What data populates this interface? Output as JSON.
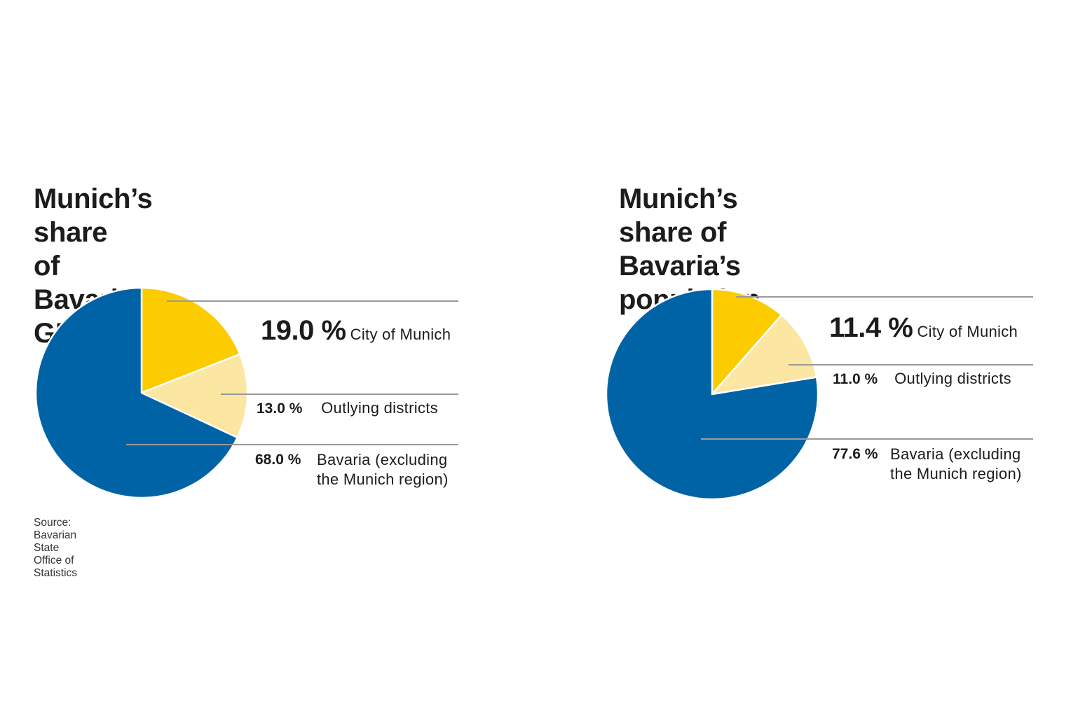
{
  "colors": {
    "city": "#fccb00",
    "outlying": "#fbe6a2",
    "bavaria": "#0063a6",
    "leader_line": "#9a9a9a"
  },
  "left": {
    "title_line1": "Munich’s share",
    "title_line2": "of Bavaria’s GDP",
    "city_pct": "19.0 %",
    "city_label": "City of Munich",
    "outlying_pct": "13.0 %",
    "outlying_label": "Outlying districts",
    "bavaria_pct": "68.0 %",
    "bavaria_label_line1": "Bavaria (excluding",
    "bavaria_label_line2": "the Munich region)",
    "source": "Source: Bavarian State Office of Statistics"
  },
  "right": {
    "title_line1": "Munich’s share of",
    "title_line2": "Bavaria’s population",
    "city_pct": "11.4 %",
    "city_label": "City of Munich",
    "outlying_pct": "11.0 %",
    "outlying_label": "Outlying districts",
    "bavaria_pct": "77.6 %",
    "bavaria_label_line1": "Bavaria (excluding",
    "bavaria_label_line2": "the Munich region)"
  },
  "chart_data": [
    {
      "type": "pie",
      "title": "Munich’s share of Bavaria’s GDP",
      "categories": [
        "City of Munich",
        "Outlying districts",
        "Bavaria (excluding the Munich region)"
      ],
      "values": [
        19.0,
        13.0,
        68.0
      ],
      "unit": "%",
      "colors": [
        "#fccb00",
        "#fbe6a2",
        "#0063a6"
      ],
      "source": "Source: Bavarian State Office of Statistics",
      "legend_position": "right"
    },
    {
      "type": "pie",
      "title": "Munich’s share of Bavaria’s population",
      "categories": [
        "City of Munich",
        "Outlying districts",
        "Bavaria (excluding the Munich region)"
      ],
      "values": [
        11.4,
        11.0,
        77.6
      ],
      "unit": "%",
      "colors": [
        "#fccb00",
        "#fbe6a2",
        "#0063a6"
      ],
      "legend_position": "right"
    }
  ]
}
